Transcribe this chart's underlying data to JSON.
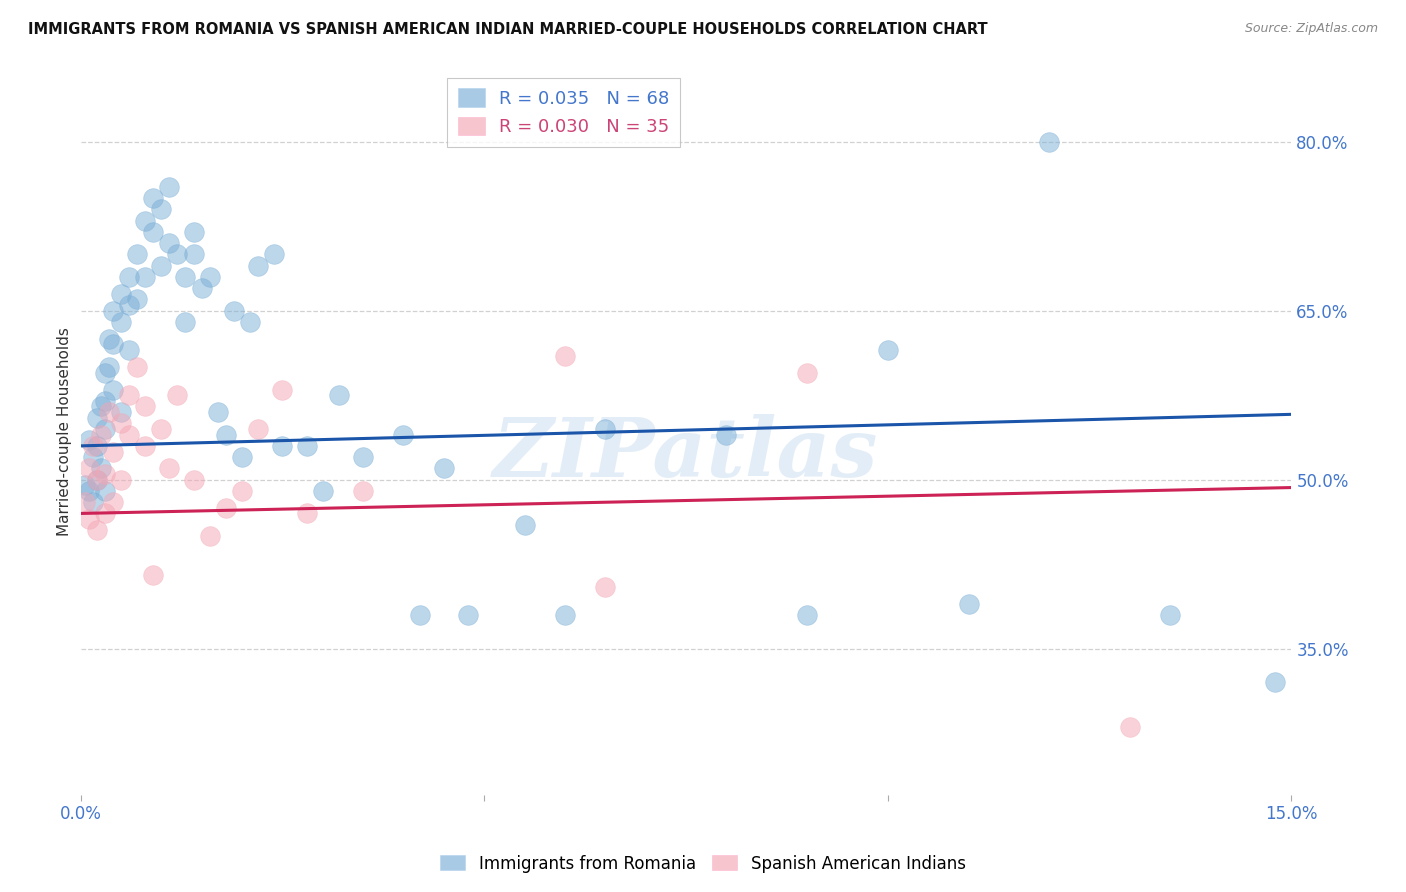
{
  "title": "IMMIGRANTS FROM ROMANIA VS SPANISH AMERICAN INDIAN MARRIED-COUPLE HOUSEHOLDS CORRELATION CHART",
  "source": "Source: ZipAtlas.com",
  "ylabel": "Married-couple Households",
  "x_min": 0.0,
  "x_max": 0.15,
  "y_min": 0.22,
  "y_max": 0.865,
  "x_ticks": [
    0.0,
    0.05,
    0.1,
    0.15
  ],
  "x_tick_labels": [
    "0.0%",
    "",
    "",
    "15.0%"
  ],
  "y_ticks": [
    0.35,
    0.5,
    0.65,
    0.8
  ],
  "y_tick_labels": [
    "35.0%",
    "50.0%",
    "65.0%",
    "80.0%"
  ],
  "watermark": "ZIPatlas",
  "blue_scatter_x": [
    0.0005,
    0.001,
    0.001,
    0.0015,
    0.0015,
    0.002,
    0.002,
    0.002,
    0.0025,
    0.0025,
    0.003,
    0.003,
    0.003,
    0.003,
    0.0035,
    0.0035,
    0.004,
    0.004,
    0.004,
    0.005,
    0.005,
    0.005,
    0.006,
    0.006,
    0.006,
    0.007,
    0.007,
    0.008,
    0.008,
    0.009,
    0.009,
    0.01,
    0.01,
    0.011,
    0.011,
    0.012,
    0.013,
    0.013,
    0.014,
    0.014,
    0.015,
    0.016,
    0.017,
    0.018,
    0.019,
    0.02,
    0.021,
    0.022,
    0.024,
    0.025,
    0.028,
    0.03,
    0.032,
    0.035,
    0.04,
    0.042,
    0.045,
    0.048,
    0.055,
    0.06,
    0.065,
    0.08,
    0.09,
    0.1,
    0.11,
    0.12,
    0.135,
    0.148
  ],
  "blue_scatter_y": [
    0.495,
    0.535,
    0.49,
    0.52,
    0.48,
    0.555,
    0.53,
    0.5,
    0.565,
    0.51,
    0.595,
    0.57,
    0.545,
    0.49,
    0.625,
    0.6,
    0.65,
    0.62,
    0.58,
    0.665,
    0.64,
    0.56,
    0.68,
    0.655,
    0.615,
    0.7,
    0.66,
    0.73,
    0.68,
    0.72,
    0.75,
    0.74,
    0.69,
    0.76,
    0.71,
    0.7,
    0.64,
    0.68,
    0.72,
    0.7,
    0.67,
    0.68,
    0.56,
    0.54,
    0.65,
    0.52,
    0.64,
    0.69,
    0.7,
    0.53,
    0.53,
    0.49,
    0.575,
    0.52,
    0.54,
    0.38,
    0.51,
    0.38,
    0.46,
    0.38,
    0.545,
    0.54,
    0.38,
    0.615,
    0.39,
    0.8,
    0.38,
    0.32
  ],
  "pink_scatter_x": [
    0.0005,
    0.001,
    0.001,
    0.0015,
    0.002,
    0.002,
    0.0025,
    0.003,
    0.003,
    0.0035,
    0.004,
    0.004,
    0.005,
    0.005,
    0.006,
    0.006,
    0.007,
    0.008,
    0.008,
    0.009,
    0.01,
    0.011,
    0.012,
    0.014,
    0.016,
    0.018,
    0.02,
    0.022,
    0.025,
    0.028,
    0.035,
    0.06,
    0.065,
    0.09,
    0.13
  ],
  "pink_scatter_y": [
    0.48,
    0.51,
    0.465,
    0.53,
    0.5,
    0.455,
    0.54,
    0.505,
    0.47,
    0.56,
    0.525,
    0.48,
    0.55,
    0.5,
    0.575,
    0.54,
    0.6,
    0.565,
    0.53,
    0.415,
    0.545,
    0.51,
    0.575,
    0.5,
    0.45,
    0.475,
    0.49,
    0.545,
    0.58,
    0.47,
    0.49,
    0.61,
    0.405,
    0.595,
    0.28
  ],
  "blue_line_x": [
    0.0,
    0.15
  ],
  "blue_line_y": [
    0.53,
    0.558
  ],
  "pink_line_x": [
    0.0,
    0.15
  ],
  "pink_line_y": [
    0.47,
    0.493
  ],
  "blue_color": "#7aaed6",
  "pink_color": "#f4a7b5",
  "blue_line_color": "#1a55aa",
  "pink_line_color": "#cc2255",
  "grid_color": "#cccccc",
  "background_color": "#ffffff",
  "title_fontsize": 10.5,
  "axis_label_fontsize": 11,
  "tick_fontsize": 12,
  "marker_size": 200,
  "legend_blue_label": "R = 0.035   N = 68",
  "legend_pink_label": "R = 0.030   N = 35",
  "bottom_legend_blue": "Immigrants from Romania",
  "bottom_legend_pink": "Spanish American Indians"
}
